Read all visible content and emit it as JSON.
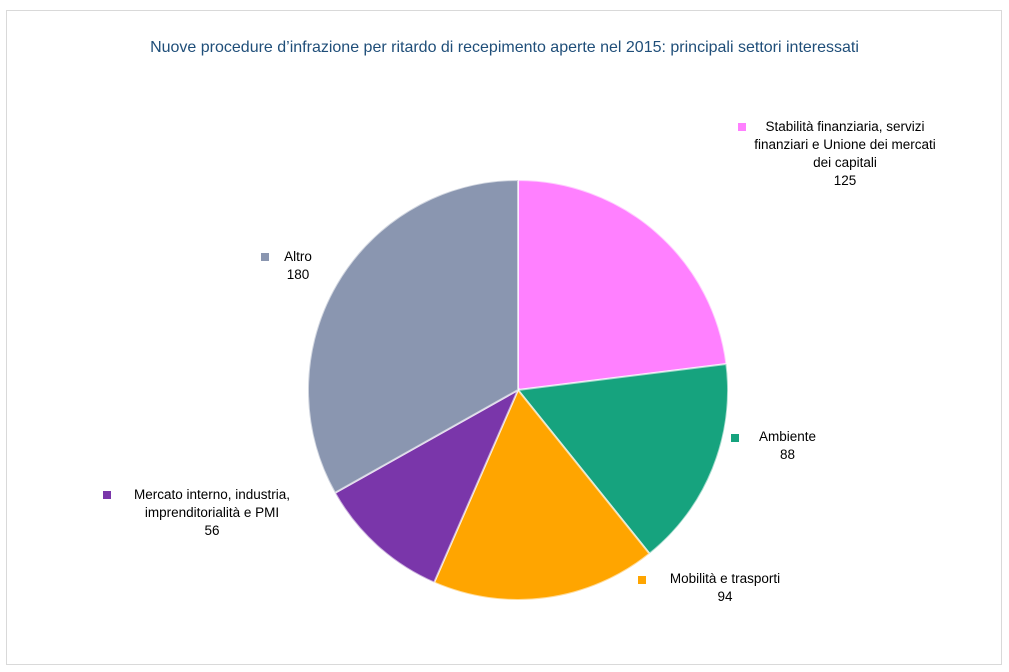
{
  "chart_data": {
    "type": "pie",
    "title": "Nuove procedure d’infrazione per ritardo di recepimento aperte nel 2015: principali settori interessati",
    "categories": [
      "Stabilità finanziaria, servizi finanziari e Unione dei mercati dei capitali",
      "Ambiente",
      "Mobilità e trasporti",
      "Mercato interno, industria, imprenditorialità e PMI",
      "Altro"
    ],
    "values": [
      125,
      88,
      94,
      56,
      180
    ],
    "colors": [
      "#ff80ff",
      "#16a37e",
      "#ffa500",
      "#7a36aa",
      "#8a96b0"
    ]
  }
}
